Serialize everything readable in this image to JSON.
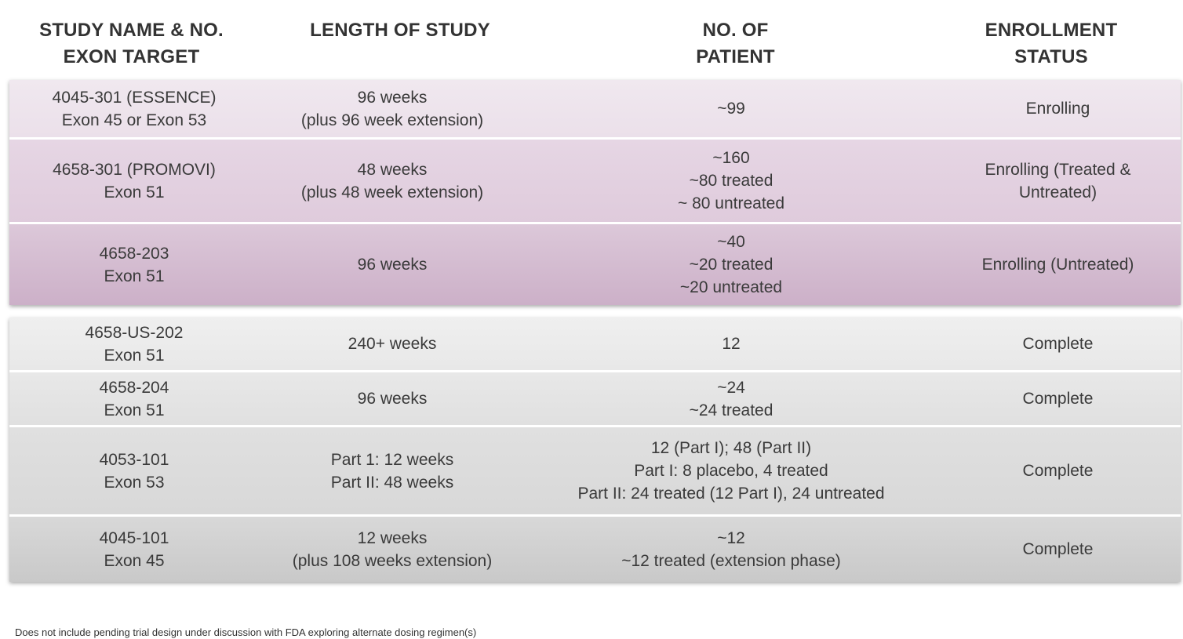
{
  "header": {
    "col1": [
      "STUDY NAME & NO.",
      "EXON TARGET"
    ],
    "col2": [
      "LENGTH OF STUDY"
    ],
    "col3": [
      "NO. OF",
      "PATIENT"
    ],
    "col4": [
      "ENROLLMENT",
      "STATUS"
    ]
  },
  "rows": [
    {
      "study": [
        "4045-301 (ESSENCE)",
        "Exon 45 or Exon 53"
      ],
      "length": [
        "96 weeks",
        "(plus 96 week extension)"
      ],
      "patients": [
        "~99"
      ],
      "status": [
        "Enrolling"
      ]
    },
    {
      "study": [
        "4658-301 (PROMOVI)",
        "Exon 51"
      ],
      "length": [
        "48 weeks",
        "(plus 48 week extension)"
      ],
      "patients": [
        "~160",
        "~80 treated",
        "~ 80 untreated"
      ],
      "status": [
        "Enrolling (Treated &",
        "Untreated)"
      ]
    },
    {
      "study": [
        "4658-203",
        "Exon 51"
      ],
      "length": [
        "96 weeks"
      ],
      "patients": [
        "~40",
        "~20 treated",
        "~20 untreated"
      ],
      "status": [
        "Enrolling (Untreated)"
      ]
    },
    {
      "study": [
        "4658-US-202",
        "Exon 51"
      ],
      "length": [
        "240+ weeks"
      ],
      "patients": [
        "12"
      ],
      "status": [
        "Complete"
      ]
    },
    {
      "study": [
        "4658-204",
        "Exon 51"
      ],
      "length": [
        "96 weeks"
      ],
      "patients": [
        "~24",
        "~24 treated"
      ],
      "status": [
        "Complete"
      ]
    },
    {
      "study": [
        "4053-101",
        "Exon 53"
      ],
      "length": [
        "Part 1: 12 weeks",
        "Part II: 48 weeks"
      ],
      "patients": [
        "12 (Part I); 48 (Part II)",
        "Part I: 8 placebo, 4 treated",
        "Part II: 24 treated (12 Part I), 24 untreated"
      ],
      "status": [
        "Complete"
      ]
    },
    {
      "study": [
        "4045-101",
        "Exon 45"
      ],
      "length": [
        "12 weeks",
        "(plus 108 weeks extension)"
      ],
      "patients": [
        "~12",
        "~12 treated (extension phase)"
      ],
      "status": [
        "Complete"
      ]
    }
  ],
  "footnote": "Does not include pending trial design under discussion with FDA exploring alternate dosing regimen(s)"
}
